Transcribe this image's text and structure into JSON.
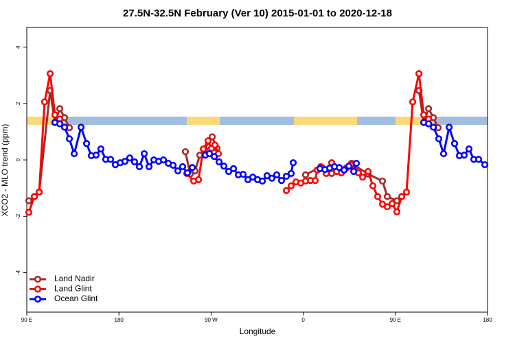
{
  "chart_data": {
    "type": "line",
    "title": "27.5N-32.5N February (Ver 10)   2015-01-01 to 2020-12-18",
    "x_label": "Longitude",
    "y_label": "XCO2 - MLO trend (ppm)",
    "xlim": [
      90,
      540
    ],
    "ylim": [
      -5.4,
      4.7
    ],
    "xticks": [
      {
        "value": 90,
        "label": "90 E"
      },
      {
        "value": 180,
        "label": "180"
      },
      {
        "value": 270,
        "label": "90 W"
      },
      {
        "value": 360,
        "label": "0"
      },
      {
        "value": 450,
        "label": "90 E"
      },
      {
        "value": 540,
        "label": "180"
      }
    ],
    "yticks": [
      -4,
      -2,
      0,
      2,
      4
    ],
    "legend": "bottom-left",
    "series": [
      {
        "name": "Land Nadir",
        "color": "#a52a2a",
        "x": [
          92.0,
          97.4,
          102.1,
          112.8,
          117.5,
          122.2,
          126.9,
          131.6,
          null,
          244.9,
          249.6,
          254.3,
          259.0,
          263.7,
          271.1,
          275.8,
          null,
          362.3,
          377.1,
          387.8,
          407.2,
          423.3,
          437.4,
          442.1,
          451.5,
          null,
          473.0,
          477.7,
          482.4,
          487.1,
          491.8
        ],
        "values": [
          -1.45,
          -1.3,
          -1.14,
          2.46,
          1.33,
          1.82,
          1.5,
          1.14,
          null,
          0.29,
          -0.5,
          -0.39,
          0.17,
          0.39,
          0.82,
          0.41,
          null,
          -0.53,
          -0.24,
          -0.48,
          -0.12,
          -0.5,
          -0.75,
          -1.3,
          -1.45,
          null,
          2.46,
          1.33,
          1.82,
          1.5,
          1.14
        ]
      },
      {
        "name": "Land Glint",
        "color": "#ff0000",
        "x": [
          92.0,
          97.4,
          102.1,
          107.4,
          112.8,
          117.5,
          122.2,
          null,
          246.3,
          253.0,
          257.7,
          262.4,
          267.1,
          270.4,
          273.8,
          277.1,
          null,
          343.5,
          348.2,
          352.9,
          357.6,
          362.3,
          367.0,
          371.7,
          373.7,
          378.4,
          382.4,
          387.8,
          392.5,
          397.2,
          401.9,
          406.6,
          409.9,
          413.9,
          418.0,
          423.3,
          428.0,
          432.7,
          437.4,
          442.1,
          446.8,
          451.5,
          456.2,
          460.9,
          466.9,
          473.0,
          477.7,
          482.4
        ],
        "values": [
          -1.86,
          -1.3,
          -1.14,
          2.06,
          3.06,
          1.6,
          1.45,
          null,
          -0.48,
          -0.75,
          -0.7,
          0.39,
          0.68,
          0.41,
          0.53,
          0.22,
          null,
          -1.09,
          -0.92,
          -0.78,
          -0.82,
          -0.75,
          -0.73,
          -0.73,
          -0.36,
          -0.27,
          -0.48,
          -0.1,
          -0.41,
          -0.46,
          -0.29,
          -0.17,
          -0.34,
          -0.46,
          -0.61,
          -0.41,
          -0.92,
          -1.3,
          -1.57,
          -1.66,
          -1.55,
          -1.84,
          -1.3,
          -1.14,
          2.06,
          3.06,
          1.6,
          1.45
        ]
      },
      {
        "name": "Ocean Glint",
        "color": "#0000ff",
        "x": [
          117.5,
          122.2,
          126.9,
          131.6,
          136.3,
          143.0,
          148.4,
          153.0,
          157.7,
          162.4,
          167.1,
          171.8,
          176.5,
          181.2,
          185.9,
          190.6,
          195.3,
          200.0,
          204.7,
          209.4,
          214.1,
          218.8,
          223.5,
          228.2,
          232.9,
          237.6,
          242.2,
          246.9,
          251.6,
          null,
          264.4,
          268.4,
          273.1,
          277.8,
          282.5,
          287.2,
          291.9,
          296.6,
          301.3,
          306.0,
          310.7,
          315.4,
          320.1,
          324.7,
          329.4,
          334.1,
          338.8,
          343.5,
          348.2,
          350.2,
          null,
          376.4,
          381.1,
          385.8,
          390.5,
          395.2,
          399.9,
          404.6,
          409.3,
          411.9,
          null,
          477.7,
          482.4,
          487.1,
          492.4,
          497.1,
          502.5,
          507.8,
          512.5,
          517.2,
          521.9,
          526.6,
          531.3,
          537.4
        ],
        "values": [
          1.33,
          1.28,
          1.16,
          0.75,
          0.22,
          1.16,
          0.58,
          0.15,
          0.17,
          0.39,
          0.02,
          0.02,
          -0.17,
          -0.1,
          -0.05,
          0.07,
          -0.07,
          -0.24,
          0.22,
          -0.24,
          0.0,
          -0.05,
          0.0,
          -0.12,
          -0.19,
          -0.39,
          -0.24,
          -0.46,
          -0.27,
          null,
          0.17,
          0.22,
          0.12,
          -0.07,
          -0.22,
          -0.41,
          -0.31,
          -0.53,
          -0.51,
          -0.7,
          -0.61,
          -0.7,
          -0.75,
          -0.56,
          -0.65,
          -0.53,
          -0.73,
          -0.58,
          -0.48,
          -0.1,
          null,
          -0.31,
          -0.34,
          -0.29,
          -0.24,
          -0.27,
          -0.36,
          -0.22,
          -0.41,
          -0.12,
          null,
          1.33,
          1.28,
          1.16,
          0.75,
          0.22,
          1.16,
          0.58,
          0.15,
          0.17,
          0.39,
          0.02,
          0.02,
          -0.17
        ]
      }
    ]
  }
}
